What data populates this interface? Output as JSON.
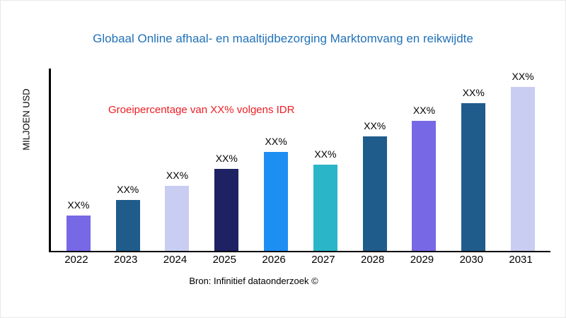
{
  "title": "Globaal Online afhaal- en maaltijdbezorging Marktomvang en reikwijdte",
  "title_color": "#2272B8",
  "y_axis_label": "MILJOEN USD",
  "annotation": {
    "text": "Groeipercentage van XX% volgens IDR",
    "color": "#EE1D23"
  },
  "source": "Bron: Infinitief dataonderzoek ©",
  "chart_data": {
    "type": "bar",
    "title": "Globaal Online afhaal- en maaltijdbezorging Marktomvang en reikwijdte",
    "xlabel": "",
    "ylabel": "MILJOEN USD",
    "categories": [
      "2022",
      "2023",
      "2024",
      "2025",
      "2026",
      "2027",
      "2028",
      "2029",
      "2030",
      "2031"
    ],
    "values": [
      50,
      72,
      92,
      116,
      140,
      122,
      162,
      184,
      209,
      232
    ],
    "values_note": "relative bar heights in px; no numeric y-axis ticks shown in source image",
    "value_labels": [
      "XX%",
      "XX%",
      "XX%",
      "XX%",
      "XX%",
      "XX%",
      "XX%",
      "XX%",
      "XX%",
      "XX%"
    ],
    "bar_colors": [
      "#7768E5",
      "#1F5C8B",
      "#C9CDF2",
      "#1E2262",
      "#1E8FF2",
      "#2BB5C8",
      "#1F5C8B",
      "#7768E5",
      "#1F5C8B",
      "#C9CDF2"
    ],
    "annotation": "Groeipercentage van XX% volgens IDR",
    "legend": "none",
    "gridlines": false,
    "y_ticks": "none"
  }
}
